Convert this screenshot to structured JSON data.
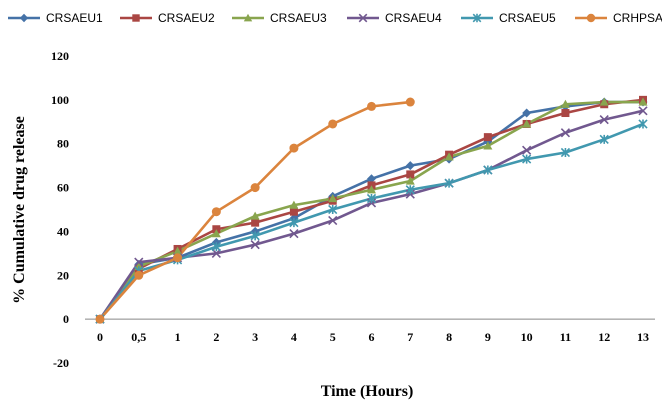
{
  "chart_data": {
    "type": "line",
    "title": "",
    "xlabel": "Time (Hours)",
    "ylabel": "% Cumulative drug release",
    "ylim": [
      -20,
      120
    ],
    "yticks": [
      -20,
      0,
      20,
      40,
      60,
      80,
      100,
      120
    ],
    "categories": [
      "0",
      "0,5",
      "1",
      "2",
      "3",
      "4",
      "5",
      "6",
      "7",
      "8",
      "9",
      "10",
      "11",
      "12",
      "13"
    ],
    "grid": false,
    "legend": "top",
    "series": [
      {
        "name": "CRSAEU1",
        "color": "#4572a7",
        "marker": "diamond",
        "values": [
          0,
          25,
          28,
          35,
          40,
          46,
          56,
          64,
          70,
          73,
          81,
          94,
          97,
          99,
          99
        ]
      },
      {
        "name": "CRSAEU2",
        "color": "#aa4643",
        "marker": "square",
        "values": [
          0,
          23,
          32,
          41,
          44,
          49,
          54,
          61,
          66,
          75,
          83,
          89,
          94,
          98,
          100
        ]
      },
      {
        "name": "CRSAEU3",
        "color": "#89a54e",
        "marker": "triangle",
        "values": [
          0,
          24,
          31,
          39,
          47,
          52,
          55,
          59,
          63,
          74,
          79,
          89,
          98,
          99,
          99
        ]
      },
      {
        "name": "CRSAEU4",
        "color": "#71588f",
        "marker": "x",
        "values": [
          0,
          26,
          28,
          30,
          34,
          39,
          45,
          53,
          57,
          62,
          68,
          77,
          85,
          91,
          95
        ]
      },
      {
        "name": "CRSAEU5",
        "color": "#4198af",
        "marker": "star",
        "values": [
          0,
          22,
          27,
          33,
          38,
          44,
          50,
          55,
          59,
          62,
          68,
          73,
          76,
          82,
          89
        ]
      },
      {
        "name": "CRHPSAI",
        "color": "#db843d",
        "marker": "circle",
        "values": [
          0,
          20,
          28,
          49,
          60,
          78,
          89,
          97,
          99,
          null,
          null,
          null,
          null,
          null,
          null
        ]
      }
    ]
  }
}
